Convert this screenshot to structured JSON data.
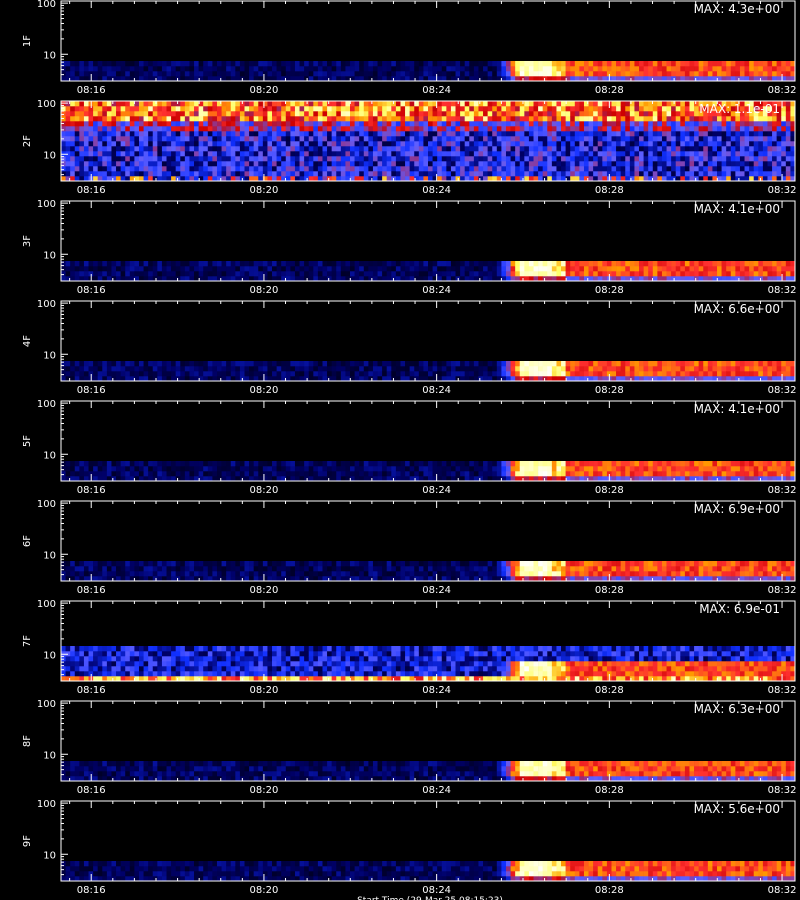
{
  "chart_data": {
    "type": "heatmap",
    "colors": {
      "background": "#000000",
      "axis": "#ffffff",
      "text": "#ffffff"
    },
    "colormap": [
      "#000000",
      "#000066",
      "#1030ff",
      "#6060ff",
      "#cc0000",
      "#ff3030",
      "#ff9900",
      "#ffff66",
      "#ffffff"
    ],
    "time_ticks": [
      "08:16",
      "08:20",
      "08:24",
      "08:28",
      "08:32"
    ],
    "time_tick_minutes": [
      16,
      20,
      24,
      28,
      32
    ],
    "time_range_minutes": [
      15.3,
      32.3
    ],
    "y_scale": "log",
    "y_ticks": [
      "100",
      "10"
    ],
    "y_tick_values": [
      100,
      10
    ],
    "y_range": [
      3,
      110
    ],
    "footer": "Start Time (29-Mar-25 08:15:23)",
    "panels": [
      {
        "label": "1F",
        "max_label": "MAX: 4.3e+00",
        "pattern": "event"
      },
      {
        "label": "2F",
        "max_label": "MAX: 1.1e-01",
        "pattern": "noise"
      },
      {
        "label": "3F",
        "max_label": "MAX: 4.1e+00",
        "pattern": "event"
      },
      {
        "label": "4F",
        "max_label": "MAX: 6.6e+00",
        "pattern": "event"
      },
      {
        "label": "5F",
        "max_label": "MAX: 4.1e+00",
        "pattern": "event"
      },
      {
        "label": "6F",
        "max_label": "MAX: 6.9e+00",
        "pattern": "event"
      },
      {
        "label": "7F",
        "max_label": "MAX: 6.9e-01",
        "pattern": "event_noisy"
      },
      {
        "label": "8F",
        "max_label": "MAX: 6.3e+00",
        "pattern": "event"
      },
      {
        "label": "9F",
        "max_label": "MAX: 5.6e+00",
        "pattern": "event"
      }
    ]
  }
}
